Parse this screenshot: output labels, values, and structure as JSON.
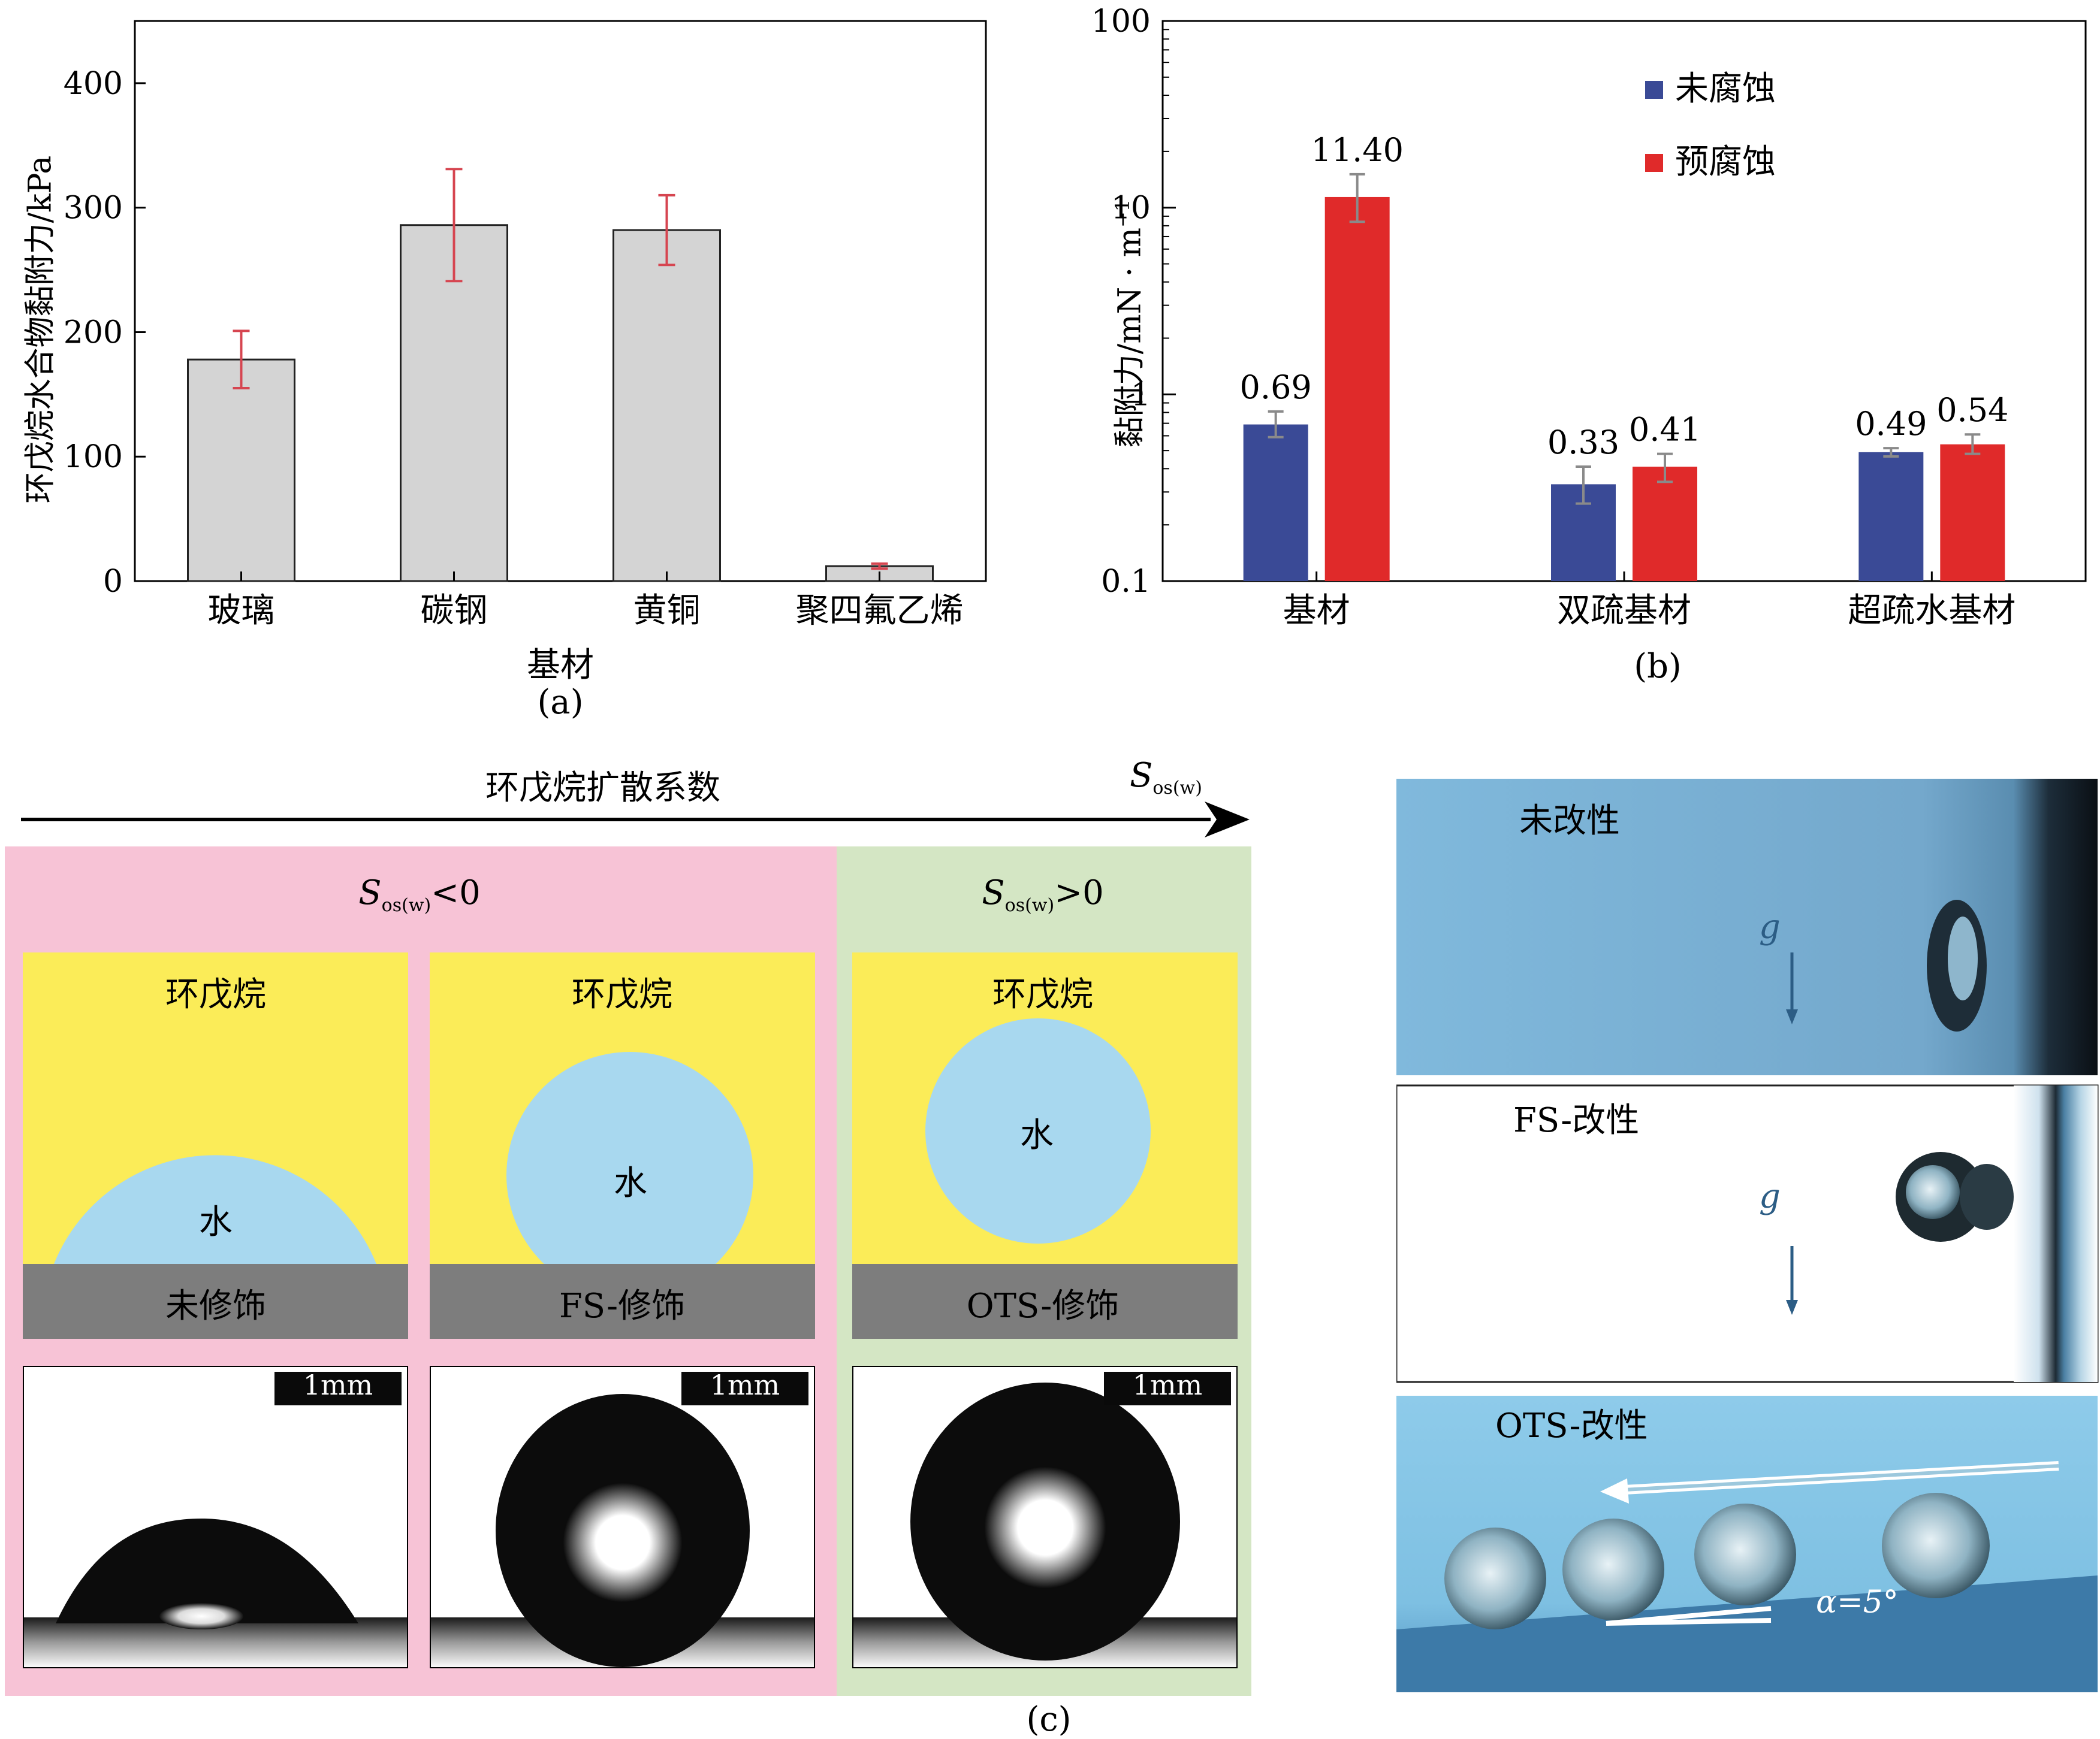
{
  "chart_data": [
    {
      "panel": "(a)",
      "type": "bar",
      "categories": [
        "玻璃",
        "碳钢",
        "黄铜",
        "聚四氟乙烯"
      ],
      "values": [
        178,
        286,
        282,
        12
      ],
      "errors": [
        23,
        45,
        28,
        2
      ],
      "xlabel": "基材",
      "ylabel": "环戊烷水合物黏附力/kPa",
      "ylim": [
        0,
        450
      ],
      "yticks": [
        "0",
        "100",
        "200",
        "300",
        "400"
      ],
      "ytick_values": [
        0,
        100,
        200,
        300,
        400
      ],
      "bar_color": "#d4d4d4",
      "error_color": "#d64550"
    },
    {
      "panel": "(b)",
      "type": "bar",
      "yscale": "log",
      "categories": [
        "基材",
        "双疏基材",
        "超疏水基材"
      ],
      "series": [
        {
          "name": "未腐蚀",
          "color": "#3a4a96",
          "values": [
            0.69,
            0.33,
            0.49
          ],
          "labels": [
            "0.69",
            "0.33",
            "0.49"
          ],
          "err_lo": [
            0.1,
            0.07,
            0.025
          ],
          "err_hi": [
            0.12,
            0.08,
            0.025
          ]
        },
        {
          "name": "预腐蚀",
          "color": "#e02a2a",
          "values": [
            11.4,
            0.41,
            0.54
          ],
          "labels": [
            "11.40",
            "0.41",
            "0.54"
          ],
          "err_lo": [
            3.0,
            0.07,
            0.06
          ],
          "err_hi": [
            3.7,
            0.07,
            0.07
          ]
        }
      ],
      "ylabel": "黏附力/mN · m",
      "ylabel_sup": "−1",
      "ylim": [
        0.1,
        100
      ],
      "yticks": [
        "0.1",
        "1",
        "10",
        "100"
      ],
      "ytick_values": [
        0.1,
        1,
        10,
        100
      ]
    }
  ],
  "panel_a_label": "(a)",
  "panel_b_label": "(b)",
  "panel_c_label": "(c)",
  "arrow": {
    "title": "环戊烷扩散系数",
    "symbol": "S",
    "subscript": "os(w)"
  },
  "regions": {
    "negative": {
      "symbol": "S",
      "subscript": "os(w)",
      "relation": "<0",
      "color": "#f7c3d6"
    },
    "positive": {
      "symbol": "S",
      "subscript": "os(w)",
      "relation": ">0",
      "color": "#d4e6c4"
    }
  },
  "schematics": [
    {
      "oil": "环戊烷",
      "water": "水",
      "substrate": "未修饰"
    },
    {
      "oil": "环戊烷",
      "water": "水",
      "substrate": "FS-修饰"
    },
    {
      "oil": "环戊烷",
      "water": "水",
      "substrate": "OTS-修饰"
    }
  ],
  "scale_bar": "1mm",
  "photos": [
    {
      "label": "未改性",
      "gravity": "g"
    },
    {
      "label": "FS-改性",
      "gravity": "g"
    },
    {
      "label": "OTS-改性",
      "angle": "α=5°"
    }
  ],
  "colors": {
    "oil": "#fbec58",
    "water": "#a8d8ef",
    "substrate": "#7d7d7d"
  }
}
